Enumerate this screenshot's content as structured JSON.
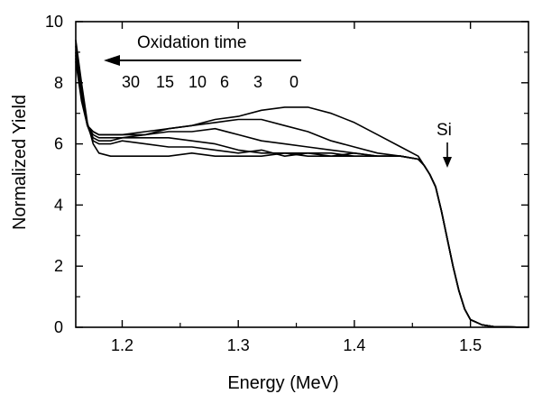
{
  "chart_data": {
    "type": "line",
    "title": "",
    "xlabel": "Energy (MeV)",
    "ylabel": "Normalized Yield",
    "xlim": [
      1.16,
      1.55
    ],
    "ylim": [
      0,
      10
    ],
    "grid": false,
    "x_ticks": [
      1.2,
      1.3,
      1.4,
      1.5
    ],
    "x_tick_labels": [
      "1.2",
      "1.3",
      "1.4",
      "1.5"
    ],
    "y_ticks": [
      0,
      2,
      4,
      6,
      8,
      10
    ],
    "y_tick_labels": [
      "0",
      "2",
      "4",
      "6",
      "8",
      "10"
    ],
    "annotations": {
      "oxidation_label": "Oxidation time",
      "time_values": [
        "30",
        "15",
        "10",
        "6",
        "3",
        "0"
      ],
      "edge_label": "Si"
    },
    "series": [
      {
        "x": [
          1.16,
          1.165,
          1.17,
          1.175,
          1.18,
          1.19,
          1.2,
          1.22,
          1.24,
          1.26,
          1.28,
          1.3,
          1.32,
          1.34,
          1.36,
          1.38,
          1.4,
          1.42,
          1.44,
          1.455,
          1.46,
          1.465,
          1.47,
          1.475,
          1.48,
          1.485,
          1.49,
          1.495,
          1.5,
          1.51,
          1.52,
          1.55
        ],
        "values": [
          9.4,
          8.0,
          6.7,
          6.0,
          5.7,
          5.6,
          5.6,
          5.6,
          5.6,
          5.7,
          5.6,
          5.6,
          5.6,
          5.7,
          5.6,
          5.6,
          5.6,
          5.6,
          5.6,
          5.5,
          5.3,
          5.0,
          4.6,
          3.8,
          2.9,
          2.0,
          1.2,
          0.6,
          0.25,
          0.08,
          0.02,
          0.0
        ]
      },
      {
        "x": [
          1.16,
          1.165,
          1.17,
          1.175,
          1.18,
          1.19,
          1.2,
          1.22,
          1.24,
          1.26,
          1.28,
          1.3,
          1.32,
          1.34,
          1.36,
          1.38,
          1.4,
          1.42,
          1.44,
          1.455,
          1.46,
          1.465,
          1.47,
          1.475,
          1.48,
          1.485,
          1.49,
          1.495,
          1.5,
          1.51,
          1.52,
          1.55
        ],
        "values": [
          9.2,
          7.8,
          6.6,
          6.1,
          6.0,
          6.0,
          6.1,
          6.0,
          5.9,
          5.9,
          5.8,
          5.7,
          5.8,
          5.6,
          5.7,
          5.7,
          5.6,
          5.6,
          5.6,
          5.5,
          5.3,
          5.0,
          4.6,
          3.8,
          2.9,
          2.0,
          1.2,
          0.6,
          0.25,
          0.08,
          0.02,
          0.0
        ]
      },
      {
        "x": [
          1.16,
          1.165,
          1.17,
          1.175,
          1.18,
          1.19,
          1.2,
          1.22,
          1.24,
          1.26,
          1.28,
          1.3,
          1.32,
          1.34,
          1.36,
          1.38,
          1.4,
          1.42,
          1.44,
          1.455,
          1.46,
          1.465,
          1.47,
          1.475,
          1.48,
          1.485,
          1.49,
          1.495,
          1.5,
          1.51,
          1.52,
          1.55
        ],
        "values": [
          9.0,
          7.7,
          6.6,
          6.2,
          6.1,
          6.1,
          6.2,
          6.2,
          6.2,
          6.1,
          6.0,
          5.8,
          5.7,
          5.7,
          5.7,
          5.6,
          5.7,
          5.6,
          5.6,
          5.5,
          5.3,
          5.0,
          4.6,
          3.8,
          2.9,
          2.0,
          1.2,
          0.6,
          0.25,
          0.08,
          0.02,
          0.0
        ]
      },
      {
        "x": [
          1.16,
          1.165,
          1.17,
          1.175,
          1.18,
          1.19,
          1.2,
          1.22,
          1.24,
          1.26,
          1.28,
          1.3,
          1.32,
          1.34,
          1.36,
          1.38,
          1.4,
          1.42,
          1.44,
          1.455,
          1.46,
          1.465,
          1.47,
          1.475,
          1.48,
          1.485,
          1.49,
          1.495,
          1.5,
          1.51,
          1.52,
          1.55
        ],
        "values": [
          8.9,
          7.6,
          6.6,
          6.3,
          6.2,
          6.2,
          6.2,
          6.3,
          6.4,
          6.4,
          6.5,
          6.3,
          6.1,
          6.0,
          5.9,
          5.8,
          5.7,
          5.6,
          5.6,
          5.5,
          5.3,
          5.0,
          4.6,
          3.8,
          2.9,
          2.0,
          1.2,
          0.6,
          0.25,
          0.08,
          0.02,
          0.0
        ]
      },
      {
        "x": [
          1.16,
          1.165,
          1.17,
          1.175,
          1.18,
          1.19,
          1.2,
          1.22,
          1.24,
          1.26,
          1.28,
          1.3,
          1.32,
          1.34,
          1.36,
          1.38,
          1.4,
          1.42,
          1.44,
          1.455,
          1.46,
          1.465,
          1.47,
          1.475,
          1.48,
          1.485,
          1.49,
          1.495,
          1.5,
          1.51,
          1.52,
          1.55
        ],
        "values": [
          8.8,
          7.5,
          6.6,
          6.4,
          6.3,
          6.3,
          6.3,
          6.3,
          6.5,
          6.6,
          6.7,
          6.8,
          6.8,
          6.6,
          6.4,
          6.1,
          5.9,
          5.7,
          5.6,
          5.5,
          5.3,
          5.0,
          4.6,
          3.8,
          2.9,
          2.0,
          1.2,
          0.6,
          0.25,
          0.08,
          0.02,
          0.0
        ]
      },
      {
        "x": [
          1.16,
          1.165,
          1.17,
          1.175,
          1.18,
          1.19,
          1.2,
          1.22,
          1.24,
          1.26,
          1.28,
          1.3,
          1.32,
          1.34,
          1.36,
          1.38,
          1.4,
          1.42,
          1.44,
          1.455,
          1.46,
          1.465,
          1.47,
          1.475,
          1.48,
          1.485,
          1.49,
          1.495,
          1.5,
          1.51,
          1.52,
          1.55
        ],
        "values": [
          8.7,
          7.4,
          6.6,
          6.4,
          6.3,
          6.3,
          6.3,
          6.4,
          6.5,
          6.6,
          6.8,
          6.9,
          7.1,
          7.2,
          7.2,
          7.0,
          6.7,
          6.3,
          5.9,
          5.6,
          5.3,
          5.0,
          4.6,
          3.8,
          2.9,
          2.0,
          1.2,
          0.6,
          0.25,
          0.08,
          0.02,
          0.0
        ]
      }
    ]
  }
}
